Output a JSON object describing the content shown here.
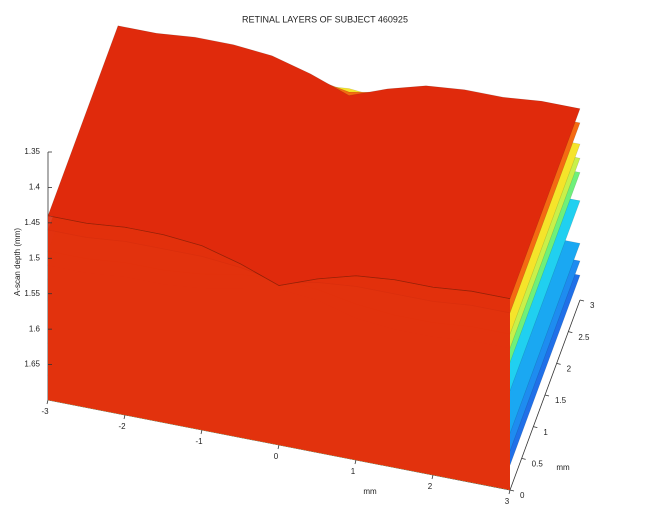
{
  "chart_data": {
    "type": "surface3d",
    "title": "RETINAL LAYERS OF SUBJECT 460925",
    "xlabel": "mm",
    "ylabel": "mm",
    "zlabel": "A-scan depth (mm)",
    "x": [
      -3,
      -2.5,
      -2,
      -1.5,
      -1,
      -0.5,
      0,
      0.5,
      1,
      1.5,
      2,
      2.5,
      3
    ],
    "xlim": [
      -3,
      3
    ],
    "xticks": [
      -3,
      -2,
      -1,
      0,
      1,
      2,
      3
    ],
    "ylim": [
      0,
      3
    ],
    "yticks": [
      0,
      0.5,
      1,
      1.5,
      2,
      2.5,
      3
    ],
    "zlim": [
      1.35,
      1.7
    ],
    "zticks": [
      1.35,
      1.4,
      1.45,
      1.5,
      1.55,
      1.6,
      1.65
    ],
    "zreversed": true,
    "series": [
      {
        "color": "#2070e8",
        "values": [
          1.665,
          1.665,
          1.665,
          1.665,
          1.665,
          1.665,
          1.665,
          1.665,
          1.665,
          1.665,
          1.665,
          1.665,
          1.665
        ]
      },
      {
        "color": "#1e8cf0",
        "values": [
          1.645,
          1.645,
          1.645,
          1.645,
          1.645,
          1.645,
          1.64,
          1.64,
          1.645,
          1.645,
          1.645,
          1.645,
          1.645
        ]
      },
      {
        "color": "#1aa8f2",
        "values": [
          1.62,
          1.62,
          1.62,
          1.62,
          1.62,
          1.615,
          1.61,
          1.61,
          1.615,
          1.62,
          1.62,
          1.62,
          1.62
        ]
      },
      {
        "color": "#20d0f0",
        "values": [
          1.56,
          1.56,
          1.555,
          1.555,
          1.55,
          1.54,
          1.525,
          1.53,
          1.55,
          1.555,
          1.56,
          1.56,
          1.56
        ]
      },
      {
        "color": "#6ef07a",
        "values": [
          1.53,
          1.53,
          1.525,
          1.525,
          1.52,
          1.51,
          1.5,
          1.505,
          1.52,
          1.525,
          1.525,
          1.52,
          1.52
        ]
      },
      {
        "color": "#c8f04a",
        "values": [
          1.51,
          1.51,
          1.505,
          1.505,
          1.5,
          1.49,
          1.48,
          1.485,
          1.5,
          1.505,
          1.505,
          1.5,
          1.5
        ]
      },
      {
        "color": "#f5e42a",
        "values": [
          1.49,
          1.49,
          1.485,
          1.485,
          1.48,
          1.47,
          1.465,
          1.47,
          1.48,
          1.485,
          1.485,
          1.48,
          1.48
        ]
      },
      {
        "color": "#f46a12",
        "values": [
          1.46,
          1.46,
          1.455,
          1.455,
          1.455,
          1.46,
          1.47,
          1.46,
          1.455,
          1.455,
          1.455,
          1.45,
          1.45
        ]
      },
      {
        "color": "#e02a0c",
        "values": [
          1.44,
          1.44,
          1.435,
          1.435,
          1.44,
          1.455,
          1.475,
          1.455,
          1.44,
          1.435,
          1.435,
          1.43,
          1.43
        ]
      }
    ]
  }
}
